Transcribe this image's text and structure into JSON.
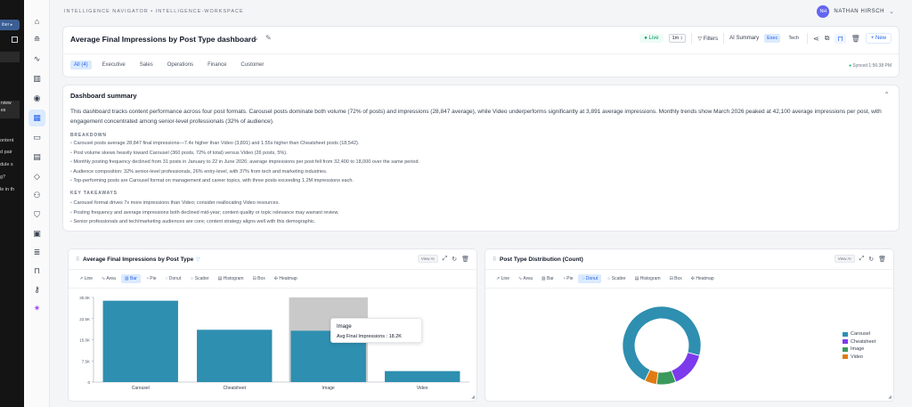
{
  "left_strip": {
    "pill": "iber ▸",
    "items": [
      "rview",
      "es"
    ],
    "lines": [
      "ontent",
      "d pair",
      "dule s",
      "g?",
      "le in th"
    ]
  },
  "rail": {
    "icons": [
      "home-icon",
      "database-icon",
      "pulse-icon",
      "bar-chart-icon",
      "eye-icon",
      "dashboard-grid-icon",
      "monitor-icon",
      "clipboard-icon",
      "tag-icon",
      "users-icon",
      "shield-icon",
      "inbox-icon",
      "stack-icon",
      "lock-icon",
      "key-icon",
      "sparkle-icon"
    ],
    "active": "dashboard-grid-icon"
  },
  "breadcrumb": "INTELLIGENCE NAVIGATOR • INTELLIGENCE-WORKSPACE",
  "user": {
    "initials": "NH",
    "name": "NATHAN HIRSCH"
  },
  "header": {
    "title": "Average Final Impressions by Post Type dashboard",
    "live": "● Live",
    "interval": "1m ↕",
    "filters": "Filters",
    "ai_summary": "AI Summary",
    "mode_exec": "Exec",
    "mode_tech": "Tech",
    "new": "+ New",
    "tabs": [
      "All (4)",
      "Executive",
      "Sales",
      "Operations",
      "Finance",
      "Customer"
    ],
    "synced": "Synced 1:56:38 PM"
  },
  "summary": {
    "title": "Dashboard summary",
    "paragraph": "This dashboard tracks content performance across four post formats. Carousel posts dominate both volume (72% of posts) and impressions (28,847 average), while Video underperforms significantly at 3,891 average impressions. Monthly trends show March 2026 peaked at 42,100 average impressions per post, with engagement concentrated among senior-level professionals (32% of audience).",
    "breakdown_heading": "BREAKDOWN",
    "breakdown": [
      "Carousel posts average 28,847 final impressions—7.4x higher than Video (3,891) and 1.55x higher than Cheatsheet posts (18,542).",
      "Post volume skews heavily toward Carousel (360 posts, 72% of total) versus Video (26 posts, 5%).",
      "Monthly posting frequency declined from 31 posts in January to 22 in June 2026; average impressions per post fell from 32,400 to 18,000 over the same period.",
      "Audience composition: 32% senior-level professionals, 26% entry-level, with 37% from tech and marketing industries.",
      "Top-performing posts are Carousel format on management and career topics, with three posts exceeding 1.2M impressions each."
    ],
    "takeaways_heading": "KEY TAKEAWAYS",
    "takeaways": [
      "Carousel format drives 7x more impressions than Video; consider reallocating Video resources.",
      "Posting frequency and average impressions both declined mid-year; content quality or topic relevance may warrant review.",
      "Senior professionals and tech/marketing audiences are core; content strategy aligns well with this demographic."
    ]
  },
  "chart_types": [
    "Line",
    "Area",
    "Bar",
    "Pie",
    "Donut",
    "Scatter",
    "Histogram",
    "Box",
    "Heatmap"
  ],
  "bar_panel": {
    "title": "Average Final Impressions by Post Type",
    "view_ai": "View AI",
    "active_type": "Bar",
    "tooltip": {
      "title": "Image",
      "text": "Avg Final Impressions : 18.2K"
    }
  },
  "donut_panel": {
    "title": "Post Type Distribution (Count)",
    "view_ai": "View AI",
    "active_type": "Donut"
  },
  "colors": {
    "primary": "#2e8fb0",
    "purple": "#7c3aed",
    "green": "#3a9a5c",
    "orange": "#e07b12",
    "hover": "#c9c9c9",
    "accent": "#2563eb"
  },
  "chart_data": [
    {
      "type": "bar",
      "title": "Average Final Impressions by Post Type",
      "categories": [
        "Carousel",
        "Cheatsheet",
        "Image",
        "Video"
      ],
      "values": [
        28847,
        18542,
        18200,
        3891
      ],
      "yticks": [
        "0",
        "7.5K",
        "15.0K",
        "22.5K",
        "30.0K"
      ],
      "ylim": [
        0,
        30000
      ],
      "hovered": "Image",
      "grid": false
    },
    {
      "type": "pie",
      "variant": "donut",
      "title": "Post Type Distribution (Count)",
      "categories": [
        "Carousel",
        "Cheatsheet",
        "Image",
        "Video"
      ],
      "values": [
        72,
        15,
        8,
        5
      ],
      "legend": "right"
    }
  ]
}
